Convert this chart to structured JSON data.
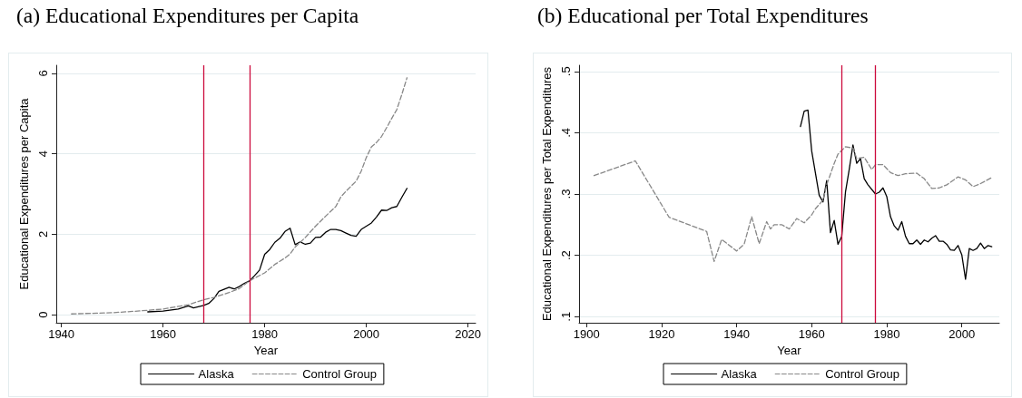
{
  "chart_data": [
    {
      "type": "line",
      "title": "(a) Educational Expenditures per Capita",
      "xlabel": "Year",
      "ylabel": "Educational Expenditures per Capita",
      "series": [
        {
          "name": "Alaska",
          "color": "#000000",
          "line_style": "solid",
          "x": [
            1957,
            1960,
            1963,
            1965,
            1966,
            1968,
            1969,
            1970,
            1971,
            1972,
            1973,
            1974,
            1975,
            1976,
            1977,
            1978,
            1979,
            1980,
            1981,
            1982,
            1983,
            1984,
            1985,
            1986,
            1987,
            1988,
            1989,
            1990,
            1991,
            1992,
            1993,
            1994,
            1995,
            1996,
            1997,
            1998,
            1999,
            2000,
            2001,
            2002,
            2003,
            2004,
            2005,
            2006,
            2007,
            2008
          ],
          "values": [
            0.07,
            0.09,
            0.14,
            0.22,
            0.17,
            0.23,
            0.28,
            0.4,
            0.58,
            0.63,
            0.68,
            0.64,
            0.7,
            0.78,
            0.84,
            0.97,
            1.11,
            1.5,
            1.62,
            1.8,
            1.9,
            2.07,
            2.15,
            1.74,
            1.81,
            1.75,
            1.78,
            1.92,
            1.93,
            2.05,
            2.12,
            2.12,
            2.09,
            2.03,
            1.97,
            1.95,
            2.12,
            2.2,
            2.28,
            2.43,
            2.6,
            2.59,
            2.66,
            2.69,
            2.92,
            3.14
          ]
        },
        {
          "name": "Control Group",
          "color": "#888888",
          "line_style": "dashed",
          "x": [
            1942,
            1950,
            1955,
            1960,
            1965,
            1968,
            1970,
            1973,
            1975,
            1977,
            1978,
            1980,
            1982,
            1984,
            1985,
            1986,
            1988,
            1990,
            1992,
            1994,
            1995,
            1996,
            1998,
            1999,
            2000,
            2001,
            2002,
            2003,
            2004,
            2005,
            2006,
            2007,
            2008
          ],
          "values": [
            0.02,
            0.05,
            0.09,
            0.14,
            0.25,
            0.37,
            0.43,
            0.55,
            0.65,
            0.84,
            0.91,
            1.04,
            1.25,
            1.41,
            1.51,
            1.68,
            1.92,
            2.2,
            2.45,
            2.69,
            2.93,
            3.07,
            3.32,
            3.57,
            3.91,
            4.17,
            4.28,
            4.43,
            4.65,
            4.88,
            5.1,
            5.48,
            5.89
          ]
        }
      ],
      "xlim": [
        1939,
        2021.5
      ],
      "ylim": [
        -0.2,
        6.2
      ],
      "xticks": [
        1940,
        1960,
        1980,
        2000,
        2020
      ],
      "yticks": [
        0,
        2,
        4,
        6
      ],
      "grid": "y",
      "legend": "bottom",
      "ref_lines": [
        {
          "axis": "x",
          "value": 1968,
          "color": "#cc0a3c"
        },
        {
          "axis": "x",
          "value": 1977,
          "color": "#cc0a3c"
        }
      ]
    },
    {
      "type": "line",
      "title": "(b) Educational per Total Expenditures",
      "xlabel": "Year",
      "ylabel": "Educational Expenditures per Total Expenditures",
      "series": [
        {
          "name": "Alaska",
          "color": "#000000",
          "line_style": "solid",
          "x": [
            1957,
            1958,
            1959,
            1960,
            1962,
            1963,
            1964,
            1965,
            1966,
            1967,
            1968,
            1969,
            1970,
            1971,
            1972,
            1973,
            1974,
            1975,
            1977,
            1978,
            1979,
            1980,
            1981,
            1982,
            1983,
            1984,
            1985,
            1986,
            1987,
            1988,
            1989,
            1990,
            1991,
            1992,
            1993,
            1994,
            1995,
            1996,
            1997,
            1998,
            1999,
            2000,
            2001,
            2002,
            2003,
            2004,
            2005,
            2006,
            2007,
            2008
          ],
          "values": [
            0.41,
            0.435,
            0.437,
            0.37,
            0.298,
            0.287,
            0.322,
            0.237,
            0.257,
            0.218,
            0.231,
            0.303,
            0.34,
            0.38,
            0.35,
            0.358,
            0.325,
            0.315,
            0.3,
            0.303,
            0.31,
            0.296,
            0.263,
            0.248,
            0.241,
            0.255,
            0.231,
            0.219,
            0.219,
            0.225,
            0.218,
            0.225,
            0.222,
            0.228,
            0.232,
            0.223,
            0.223,
            0.218,
            0.209,
            0.208,
            0.216,
            0.201,
            0.161,
            0.211,
            0.208,
            0.211,
            0.22,
            0.211,
            0.216,
            0.214
          ]
        },
        {
          "name": "Control Group",
          "color": "#888888",
          "line_style": "dashed",
          "x": [
            1902,
            1913,
            1922,
            1932,
            1934,
            1936,
            1940,
            1942,
            1944,
            1946,
            1948,
            1949,
            1950,
            1952,
            1954,
            1956,
            1958,
            1960,
            1961,
            1963,
            1964,
            1966,
            1967,
            1969,
            1971,
            1972,
            1974,
            1976,
            1977,
            1979,
            1981,
            1983,
            1985,
            1988,
            1990,
            1992,
            1994,
            1996,
            1999,
            2001,
            2003,
            2005,
            2008
          ],
          "values": [
            0.33,
            0.354,
            0.262,
            0.239,
            0.19,
            0.226,
            0.207,
            0.218,
            0.263,
            0.219,
            0.255,
            0.243,
            0.25,
            0.25,
            0.243,
            0.26,
            0.253,
            0.266,
            0.276,
            0.29,
            0.315,
            0.35,
            0.365,
            0.377,
            0.375,
            0.358,
            0.36,
            0.34,
            0.348,
            0.348,
            0.335,
            0.33,
            0.333,
            0.334,
            0.325,
            0.309,
            0.31,
            0.315,
            0.328,
            0.323,
            0.312,
            0.317,
            0.327
          ]
        }
      ],
      "xlim": [
        1898,
        2010
      ],
      "ylim": [
        0.09,
        0.51
      ],
      "xticks": [
        1900,
        1920,
        1940,
        1960,
        1980,
        2000
      ],
      "yticks": [
        {
          "value": 0.1,
          "label": ".1"
        },
        {
          "value": 0.2,
          "label": ".2"
        },
        {
          "value": 0.3,
          "label": ".3"
        },
        {
          "value": 0.4,
          "label": ".4"
        },
        {
          "value": 0.5,
          "label": ".5"
        }
      ],
      "grid": "y",
      "legend": "bottom",
      "ref_lines": [
        {
          "axis": "x",
          "value": 1968,
          "color": "#cc0a3c"
        },
        {
          "axis": "x",
          "value": 1977,
          "color": "#cc0a3c"
        }
      ]
    }
  ]
}
